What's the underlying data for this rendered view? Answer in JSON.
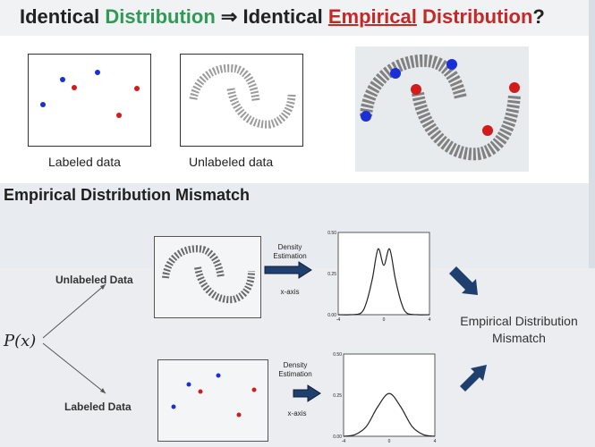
{
  "top_slide": {
    "title_part1": "Identical ",
    "title_green": "Distribution",
    "title_part2": " ⇒ Identical ",
    "title_red_underlined": "Empirical",
    "title_red_rest": " Distribution",
    "title_end": "?",
    "caption_labeled": "Labeled data",
    "caption_unlabeled": "Unlabeled data"
  },
  "bottom_slide": {
    "title": "Empirical Distribution Mismatch",
    "px_label": "P(x)",
    "unlabeled_label": "Unlabeled Data",
    "labeled_label": "Labeled Data",
    "density_estimation_1": "Density Estimation",
    "density_estimation_2": "Density Estimation",
    "xaxis_1": "x-axis",
    "xaxis_2": "x-axis",
    "mismatch_line1": "Empirical Distribution",
    "mismatch_line2": "Mismatch"
  },
  "chart_data": [
    {
      "type": "line",
      "x": [
        -4,
        -3,
        -2,
        -1.5,
        -1,
        -0.5,
        0,
        0.5,
        1,
        1.5,
        2,
        3,
        4
      ],
      "y": [
        0,
        0,
        0.01,
        0.08,
        0.22,
        0.4,
        0.3,
        0.4,
        0.22,
        0.08,
        0.01,
        0,
        0
      ],
      "ylim": [
        0,
        0.5
      ],
      "xticks": [
        "-4",
        "0",
        "4"
      ],
      "yticks": [
        "0.00",
        "0.25",
        "0.50"
      ]
    },
    {
      "type": "line",
      "x": [
        -4,
        -3,
        -2,
        -1,
        0,
        1,
        2,
        3,
        4
      ],
      "y": [
        0,
        0.01,
        0.06,
        0.18,
        0.26,
        0.18,
        0.06,
        0.01,
        0
      ],
      "ylim": [
        0,
        0.5
      ],
      "xticks": [
        "-4",
        "0",
        "4"
      ],
      "yticks": [
        "0.00",
        "0.25",
        "0.50"
      ]
    }
  ],
  "colors": {
    "blue_point": "#1a2fd6",
    "red_point": "#d21c1c",
    "title_green": "#2e9a55",
    "title_red": "#c62828",
    "arrow": "#1f3f6e"
  }
}
